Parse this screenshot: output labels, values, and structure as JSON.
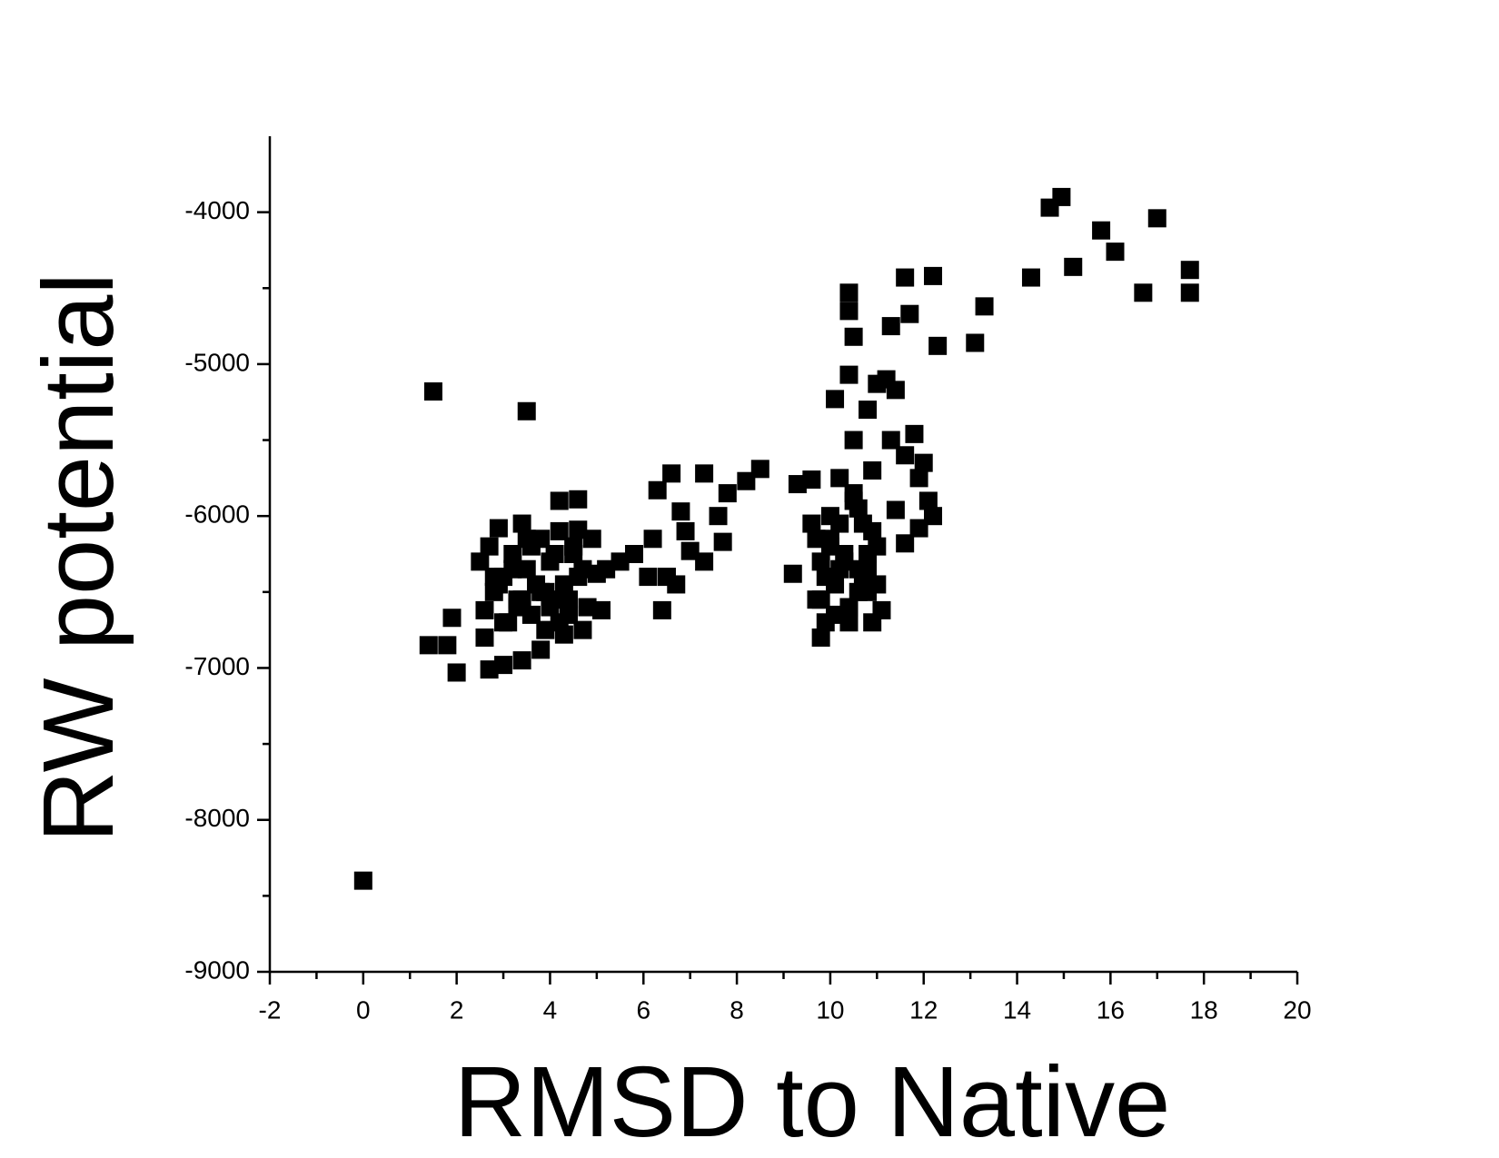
{
  "chart_data": {
    "type": "scatter",
    "x_label": "RMSD to Native",
    "y_label": "RW potential",
    "xlim": [
      -2,
      20
    ],
    "xticks": [
      -2,
      0,
      2,
      4,
      6,
      8,
      10,
      12,
      14,
      16,
      18,
      20
    ],
    "ylim": [
      -9000,
      -3500
    ],
    "yticks": [
      -9000,
      -8000,
      -7000,
      -6000,
      -5000,
      -4000
    ],
    "color": "#000000",
    "x": [
      0,
      1.5,
      3.5,
      1.4,
      1.8,
      1.9,
      2.0,
      2.7,
      3.0,
      3.4,
      3.8,
      4.2,
      4.6,
      4.7,
      5.2,
      5.5,
      5.8,
      6.2,
      6.3,
      6.6,
      7.3,
      7.6,
      7.8,
      8.2,
      8.5,
      9.2,
      9.3,
      9.6,
      9.8,
      10.1,
      10.4,
      10.4,
      10.4,
      10.5,
      10.5,
      11.6,
      12.2,
      11.3,
      11.7,
      12.3,
      13.1,
      13.3,
      14.3,
      14.7,
      14.95,
      15.2,
      15.8,
      16.1,
      16.7,
      17.0,
      17.7,
      17.7,
      11.0,
      11.2,
      11.4,
      11.3,
      11.6,
      11.8,
      11.9,
      12.0,
      12.1,
      12.2,
      11.9,
      11.6,
      11.4,
      10.8,
      10.9,
      11.1,
      6.4,
      6.5,
      6.8,
      7.0,
      7.3,
      6.7,
      6.9,
      7.7,
      6.1,
      5.1,
      4.3,
      4.6,
      4.9,
      5.0,
      2.5,
      2.6,
      2.7,
      2.8,
      2.9,
      3.0,
      3.1,
      3.2,
      3.3,
      3.4,
      3.5,
      3.6,
      3.7,
      3.8,
      3.9,
      4.0,
      4.1,
      4.2,
      4.3,
      4.4,
      4.5,
      4.6,
      4.8,
      2.6,
      2.9,
      3.2,
      3.5,
      3.8,
      4.1,
      4.4,
      4.7,
      3.0,
      3.3,
      3.6,
      3.9,
      4.2,
      2.8,
      3.4,
      4.0,
      4.5,
      9.6,
      9.7,
      9.8,
      9.9,
      10.0,
      10.1,
      10.2,
      10.3,
      10.4,
      10.5,
      10.6,
      10.7,
      10.8,
      10.9,
      11.0,
      9.7,
      9.9,
      10.1,
      10.3,
      10.5,
      10.7,
      10.9,
      9.8,
      10.0,
      10.2,
      10.4,
      10.6,
      10.8,
      11.0,
      10.2,
      10.6,
      10.0,
      10.4,
      10.8
    ],
    "values": [
      -8400,
      -5180,
      -5310,
      -6850,
      -6850,
      -6670,
      -7030,
      -7010,
      -6980,
      -6950,
      -6880,
      -5900,
      -5890,
      -6750,
      -6350,
      -6300,
      -6250,
      -6150,
      -5830,
      -5720,
      -5720,
      -6000,
      -5850,
      -5770,
      -5690,
      -6380,
      -5790,
      -5760,
      -6800,
      -5230,
      -5070,
      -4530,
      -4650,
      -4820,
      -5500,
      -4430,
      -4420,
      -4750,
      -4670,
      -4880,
      -4860,
      -4620,
      -4430,
      -3970,
      -3900,
      -4360,
      -4120,
      -4260,
      -4530,
      -4040,
      -4380,
      -4530,
      -5130,
      -5100,
      -5170,
      -5500,
      -5600,
      -5460,
      -5750,
      -5650,
      -5900,
      -6000,
      -6080,
      -6180,
      -5960,
      -5300,
      -6700,
      -6620,
      -6620,
      -6400,
      -5970,
      -6230,
      -6300,
      -6450,
      -6100,
      -6170,
      -6400,
      -6620,
      -6780,
      -6090,
      -6150,
      -6380,
      -6300,
      -6620,
      -6200,
      -6500,
      -6080,
      -6400,
      -6700,
      -6250,
      -6550,
      -6050,
      -6350,
      -6650,
      -6450,
      -6150,
      -6750,
      -6300,
      -6550,
      -6100,
      -6450,
      -6650,
      -6250,
      -6400,
      -6600,
      -6800,
      -6450,
      -6350,
      -6150,
      -6500,
      -6250,
      -6550,
      -6350,
      -6700,
      -6600,
      -6200,
      -6500,
      -6700,
      -6400,
      -6550,
      -6600,
      -6200,
      -6050,
      -6550,
      -6300,
      -6700,
      -6150,
      -6450,
      -5750,
      -6250,
      -6600,
      -5850,
      -6350,
      -6050,
      -6500,
      -5700,
      -6200,
      -6150,
      -6400,
      -6650,
      -6300,
      -5900,
      -6450,
      -6100,
      -6550,
      -6000,
      -6350,
      -6700,
      -5950,
      -6250,
      -6450,
      -6050,
      -6500,
      -6200,
      -6600,
      -6350
    ]
  }
}
